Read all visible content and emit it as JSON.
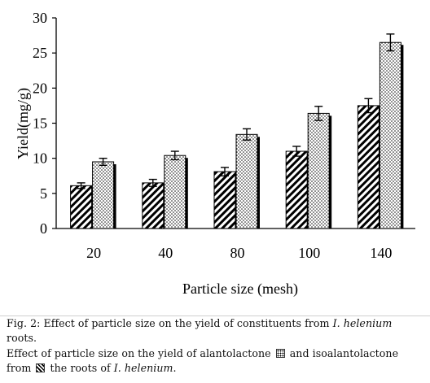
{
  "chart_data": {
    "type": "bar",
    "categories": [
      "20",
      "40",
      "80",
      "100",
      "140"
    ],
    "series": [
      {
        "name": "isoalantolactone",
        "pattern": "diagonal-hatch",
        "values": [
          6.1,
          6.5,
          8.1,
          11.0,
          17.5
        ],
        "errors": [
          0.4,
          0.5,
          0.6,
          0.7,
          1.0
        ]
      },
      {
        "name": "alantolactone",
        "pattern": "dotted",
        "values": [
          9.5,
          10.4,
          13.4,
          16.4,
          26.5
        ],
        "errors": [
          0.5,
          0.6,
          0.8,
          1.0,
          1.2
        ]
      }
    ],
    "xlabel": "Particle size (mesh)",
    "ylabel": "Yield(mg/g)",
    "ylim": [
      0,
      30
    ],
    "yticks": [
      0,
      5,
      10,
      15,
      20,
      25,
      30
    ],
    "grid": false,
    "colors": {
      "bar_fill": "#ffffff",
      "ink": "#000000",
      "shadow": "#000000"
    }
  },
  "caption": {
    "line1_text": "Fig. 2: Effect of particle size on the yield of constituents from ",
    "line1_species": "I. helenium",
    "line1_end": " roots.",
    "line2_text": "Effect of particle size on the yield of alantolactone ",
    "line2_mid": " and isoalantolactone from ",
    "line2_after": " the roots of ",
    "line2_species": "I. helenium",
    "line2_end": "."
  }
}
